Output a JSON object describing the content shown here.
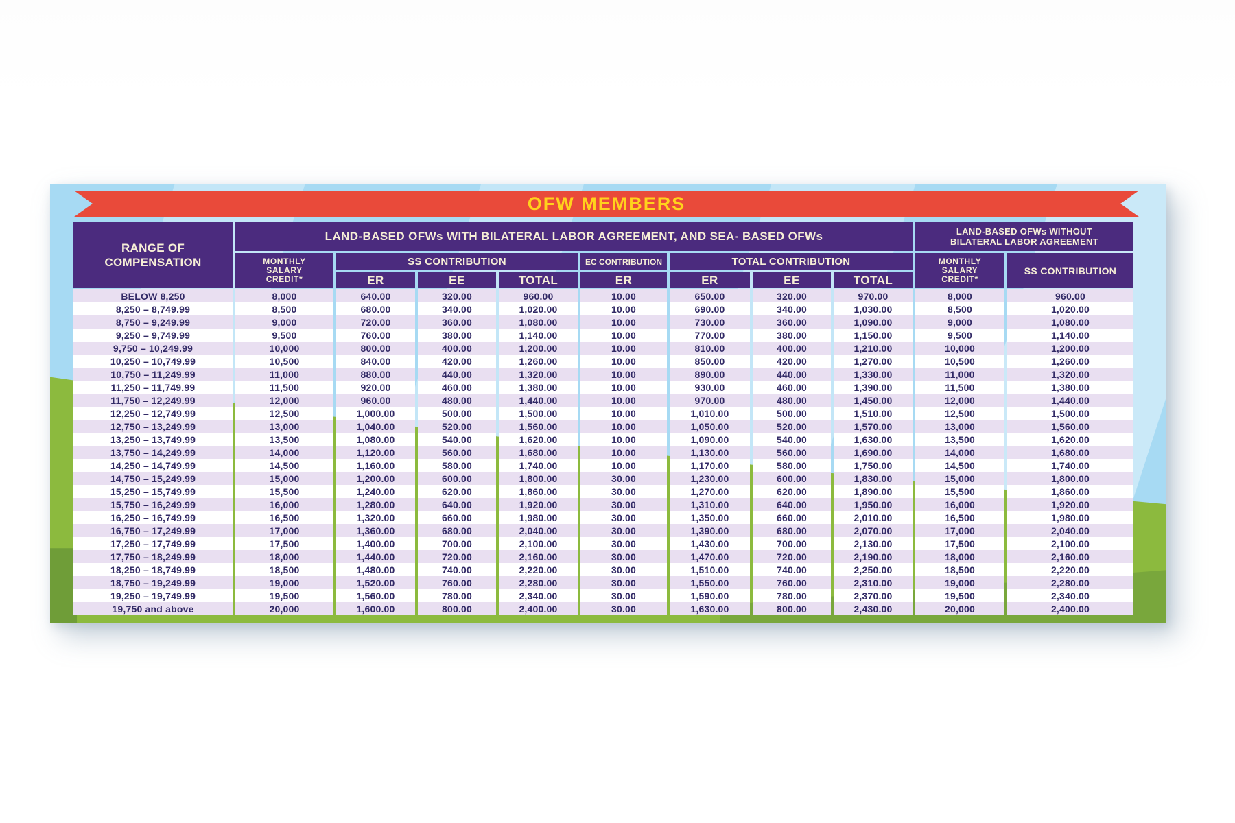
{
  "banner": {
    "title": "OFW MEMBERS"
  },
  "headers": {
    "range": "RANGE OF\nCOMPENSATION",
    "group_with": "LAND-BASED OFWs WITH BILATERAL LABOR AGREEMENT, AND SEA- BASED OFWs",
    "group_without": "LAND-BASED OFWs WITHOUT\nBILATERAL LABOR AGREEMENT",
    "monthly_salary_credit": "MONTHLY\nSALARY\nCREDIT*",
    "ss_contribution": "SS CONTRIBUTION",
    "ec_contribution": "EC CONTRIBUTION",
    "total_contribution": "TOTAL CONTRIBUTION",
    "er": "ER",
    "ee": "EE",
    "total": "TOTAL"
  },
  "colors": {
    "header_purple": "#4b2b7e",
    "header_text_cream": "#f6eed6",
    "ribbon_red": "#e94a3a",
    "title_yellow": "#ffd21c",
    "row_lavender": "#e9dff1",
    "row_white": "#ffffff",
    "data_text": "#322a66",
    "sky_blue": "#a7daf3",
    "grass_green": "#8cba3e"
  },
  "chart_data": {
    "type": "table",
    "title": "OFW MEMBERS",
    "column_groups": [
      "RANGE OF COMPENSATION",
      "LAND-BASED OFWs WITH BILATERAL LABOR AGREEMENT, AND SEA- BASED OFWs",
      "LAND-BASED OFWs WITHOUT BILATERAL LABOR AGREEMENT"
    ],
    "columns": [
      "RANGE OF COMPENSATION",
      "MONTHLY SALARY CREDIT*",
      "SS CONTRIBUTION ER",
      "SS CONTRIBUTION EE",
      "SS CONTRIBUTION TOTAL",
      "EC CONTRIBUTION ER",
      "TOTAL CONTRIBUTION ER",
      "TOTAL CONTRIBUTION EE",
      "TOTAL CONTRIBUTION TOTAL",
      "MONTHLY SALARY CREDIT* (WITHOUT BILATERAL AGREEMENT)",
      "SS CONTRIBUTION (WITHOUT BILATERAL AGREEMENT)"
    ],
    "rows": [
      [
        "BELOW 8,250",
        "8,000",
        "640.00",
        "320.00",
        "960.00",
        "10.00",
        "650.00",
        "320.00",
        "970.00",
        "8,000",
        "960.00"
      ],
      [
        "8,250 – 8,749.99",
        "8,500",
        "680.00",
        "340.00",
        "1,020.00",
        "10.00",
        "690.00",
        "340.00",
        "1,030.00",
        "8,500",
        "1,020.00"
      ],
      [
        "8,750 – 9,249.99",
        "9,000",
        "720.00",
        "360.00",
        "1,080.00",
        "10.00",
        "730.00",
        "360.00",
        "1,090.00",
        "9,000",
        "1,080.00"
      ],
      [
        "9,250 – 9,749.99",
        "9,500",
        "760.00",
        "380.00",
        "1,140.00",
        "10.00",
        "770.00",
        "380.00",
        "1,150.00",
        "9,500",
        "1,140.00"
      ],
      [
        "9,750 – 10,249.99",
        "10,000",
        "800.00",
        "400.00",
        "1,200.00",
        "10.00",
        "810.00",
        "400.00",
        "1,210.00",
        "10,000",
        "1,200.00"
      ],
      [
        "10,250 – 10,749.99",
        "10,500",
        "840.00",
        "420.00",
        "1,260.00",
        "10.00",
        "850.00",
        "420.00",
        "1,270.00",
        "10,500",
        "1,260.00"
      ],
      [
        "10,750 – 11,249.99",
        "11,000",
        "880.00",
        "440.00",
        "1,320.00",
        "10.00",
        "890.00",
        "440.00",
        "1,330.00",
        "11,000",
        "1,320.00"
      ],
      [
        "11,250 – 11,749.99",
        "11,500",
        "920.00",
        "460.00",
        "1,380.00",
        "10.00",
        "930.00",
        "460.00",
        "1,390.00",
        "11,500",
        "1,380.00"
      ],
      [
        "11,750 – 12,249.99",
        "12,000",
        "960.00",
        "480.00",
        "1,440.00",
        "10.00",
        "970.00",
        "480.00",
        "1,450.00",
        "12,000",
        "1,440.00"
      ],
      [
        "12,250 – 12,749.99",
        "12,500",
        "1,000.00",
        "500.00",
        "1,500.00",
        "10.00",
        "1,010.00",
        "500.00",
        "1,510.00",
        "12,500",
        "1,500.00"
      ],
      [
        "12,750 – 13,249.99",
        "13,000",
        "1,040.00",
        "520.00",
        "1,560.00",
        "10.00",
        "1,050.00",
        "520.00",
        "1,570.00",
        "13,000",
        "1,560.00"
      ],
      [
        "13,250 – 13,749.99",
        "13,500",
        "1,080.00",
        "540.00",
        "1,620.00",
        "10.00",
        "1,090.00",
        "540.00",
        "1,630.00",
        "13,500",
        "1,620.00"
      ],
      [
        "13,750 – 14,249.99",
        "14,000",
        "1,120.00",
        "560.00",
        "1,680.00",
        "10.00",
        "1,130.00",
        "560.00",
        "1,690.00",
        "14,000",
        "1,680.00"
      ],
      [
        "14,250 – 14,749.99",
        "14,500",
        "1,160.00",
        "580.00",
        "1,740.00",
        "10.00",
        "1,170.00",
        "580.00",
        "1,750.00",
        "14,500",
        "1,740.00"
      ],
      [
        "14,750 – 15,249.99",
        "15,000",
        "1,200.00",
        "600.00",
        "1,800.00",
        "30.00",
        "1,230.00",
        "600.00",
        "1,830.00",
        "15,000",
        "1,800.00"
      ],
      [
        "15,250 – 15,749.99",
        "15,500",
        "1,240.00",
        "620.00",
        "1,860.00",
        "30.00",
        "1,270.00",
        "620.00",
        "1,890.00",
        "15,500",
        "1,860.00"
      ],
      [
        "15,750 – 16,249.99",
        "16,000",
        "1,280.00",
        "640.00",
        "1,920.00",
        "30.00",
        "1,310.00",
        "640.00",
        "1,950.00",
        "16,000",
        "1,920.00"
      ],
      [
        "16,250 – 16,749.99",
        "16,500",
        "1,320.00",
        "660.00",
        "1,980.00",
        "30.00",
        "1,350.00",
        "660.00",
        "2,010.00",
        "16,500",
        "1,980.00"
      ],
      [
        "16,750 – 17,249.99",
        "17,000",
        "1,360.00",
        "680.00",
        "2,040.00",
        "30.00",
        "1,390.00",
        "680.00",
        "2,070.00",
        "17,000",
        "2,040.00"
      ],
      [
        "17,250 – 17,749.99",
        "17,500",
        "1,400.00",
        "700.00",
        "2,100.00",
        "30.00",
        "1,430.00",
        "700.00",
        "2,130.00",
        "17,500",
        "2,100.00"
      ],
      [
        "17,750 – 18,249.99",
        "18,000",
        "1,440.00",
        "720.00",
        "2,160.00",
        "30.00",
        "1,470.00",
        "720.00",
        "2,190.00",
        "18,000",
        "2,160.00"
      ],
      [
        "18,250 – 18,749.99",
        "18,500",
        "1,480.00",
        "740.00",
        "2,220.00",
        "30.00",
        "1,510.00",
        "740.00",
        "2,250.00",
        "18,500",
        "2,220.00"
      ],
      [
        "18,750 – 19,249.99",
        "19,000",
        "1,520.00",
        "760.00",
        "2,280.00",
        "30.00",
        "1,550.00",
        "760.00",
        "2,310.00",
        "19,000",
        "2,280.00"
      ],
      [
        "19,250 – 19,749.99",
        "19,500",
        "1,560.00",
        "780.00",
        "2,340.00",
        "30.00",
        "1,590.00",
        "780.00",
        "2,370.00",
        "19,500",
        "2,340.00"
      ],
      [
        "19,750 and above",
        "20,000",
        "1,600.00",
        "800.00",
        "2,400.00",
        "30.00",
        "1,630.00",
        "800.00",
        "2,430.00",
        "20,000",
        "2,400.00"
      ]
    ]
  }
}
